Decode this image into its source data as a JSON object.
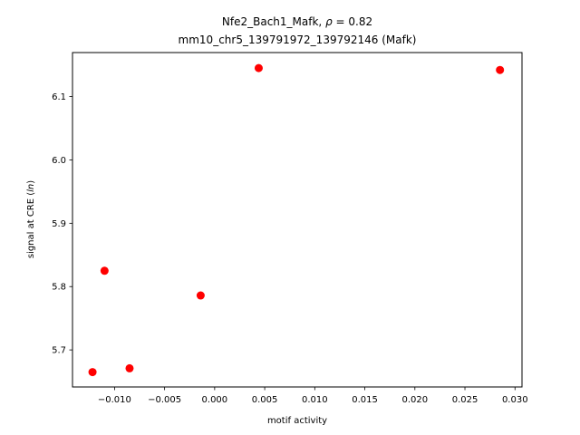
{
  "chart_data": {
    "type": "scatter",
    "title_line1_prefix": "Nfe2_Bach1_Mafk, ",
    "title_rho_symbol": "ρ",
    "title_rho_value": " = 0.82",
    "title_line2": "mm10_chr5_139791972_139792146 (Mafk)",
    "xlabel": "motif activity",
    "ylabel_prefix": "signal at CRE (",
    "ylabel_italic": "ln",
    "ylabel_suffix": ")",
    "xlim": [
      -0.0142,
      0.0307
    ],
    "ylim": [
      5.6415,
      6.1695
    ],
    "xticks": [
      -0.01,
      -0.005,
      0.0,
      0.005,
      0.01,
      0.015,
      0.02,
      0.025,
      0.03
    ],
    "xtick_labels": [
      "−0.010",
      "−0.005",
      "0.000",
      "0.005",
      "0.010",
      "0.015",
      "0.020",
      "0.025",
      "0.030"
    ],
    "yticks": [
      5.7,
      5.8,
      5.9,
      6.0,
      6.1
    ],
    "ytick_labels": [
      "5.7",
      "5.8",
      "5.9",
      "6.0",
      "6.1"
    ],
    "points": [
      {
        "x": -0.0122,
        "y": 5.665
      },
      {
        "x": -0.011,
        "y": 5.825
      },
      {
        "x": -0.0085,
        "y": 5.671
      },
      {
        "x": -0.0014,
        "y": 5.786
      },
      {
        "x": 0.0044,
        "y": 6.145
      },
      {
        "x": 0.0285,
        "y": 6.142
      }
    ],
    "marker_color": "#ff0000",
    "grid": false
  }
}
